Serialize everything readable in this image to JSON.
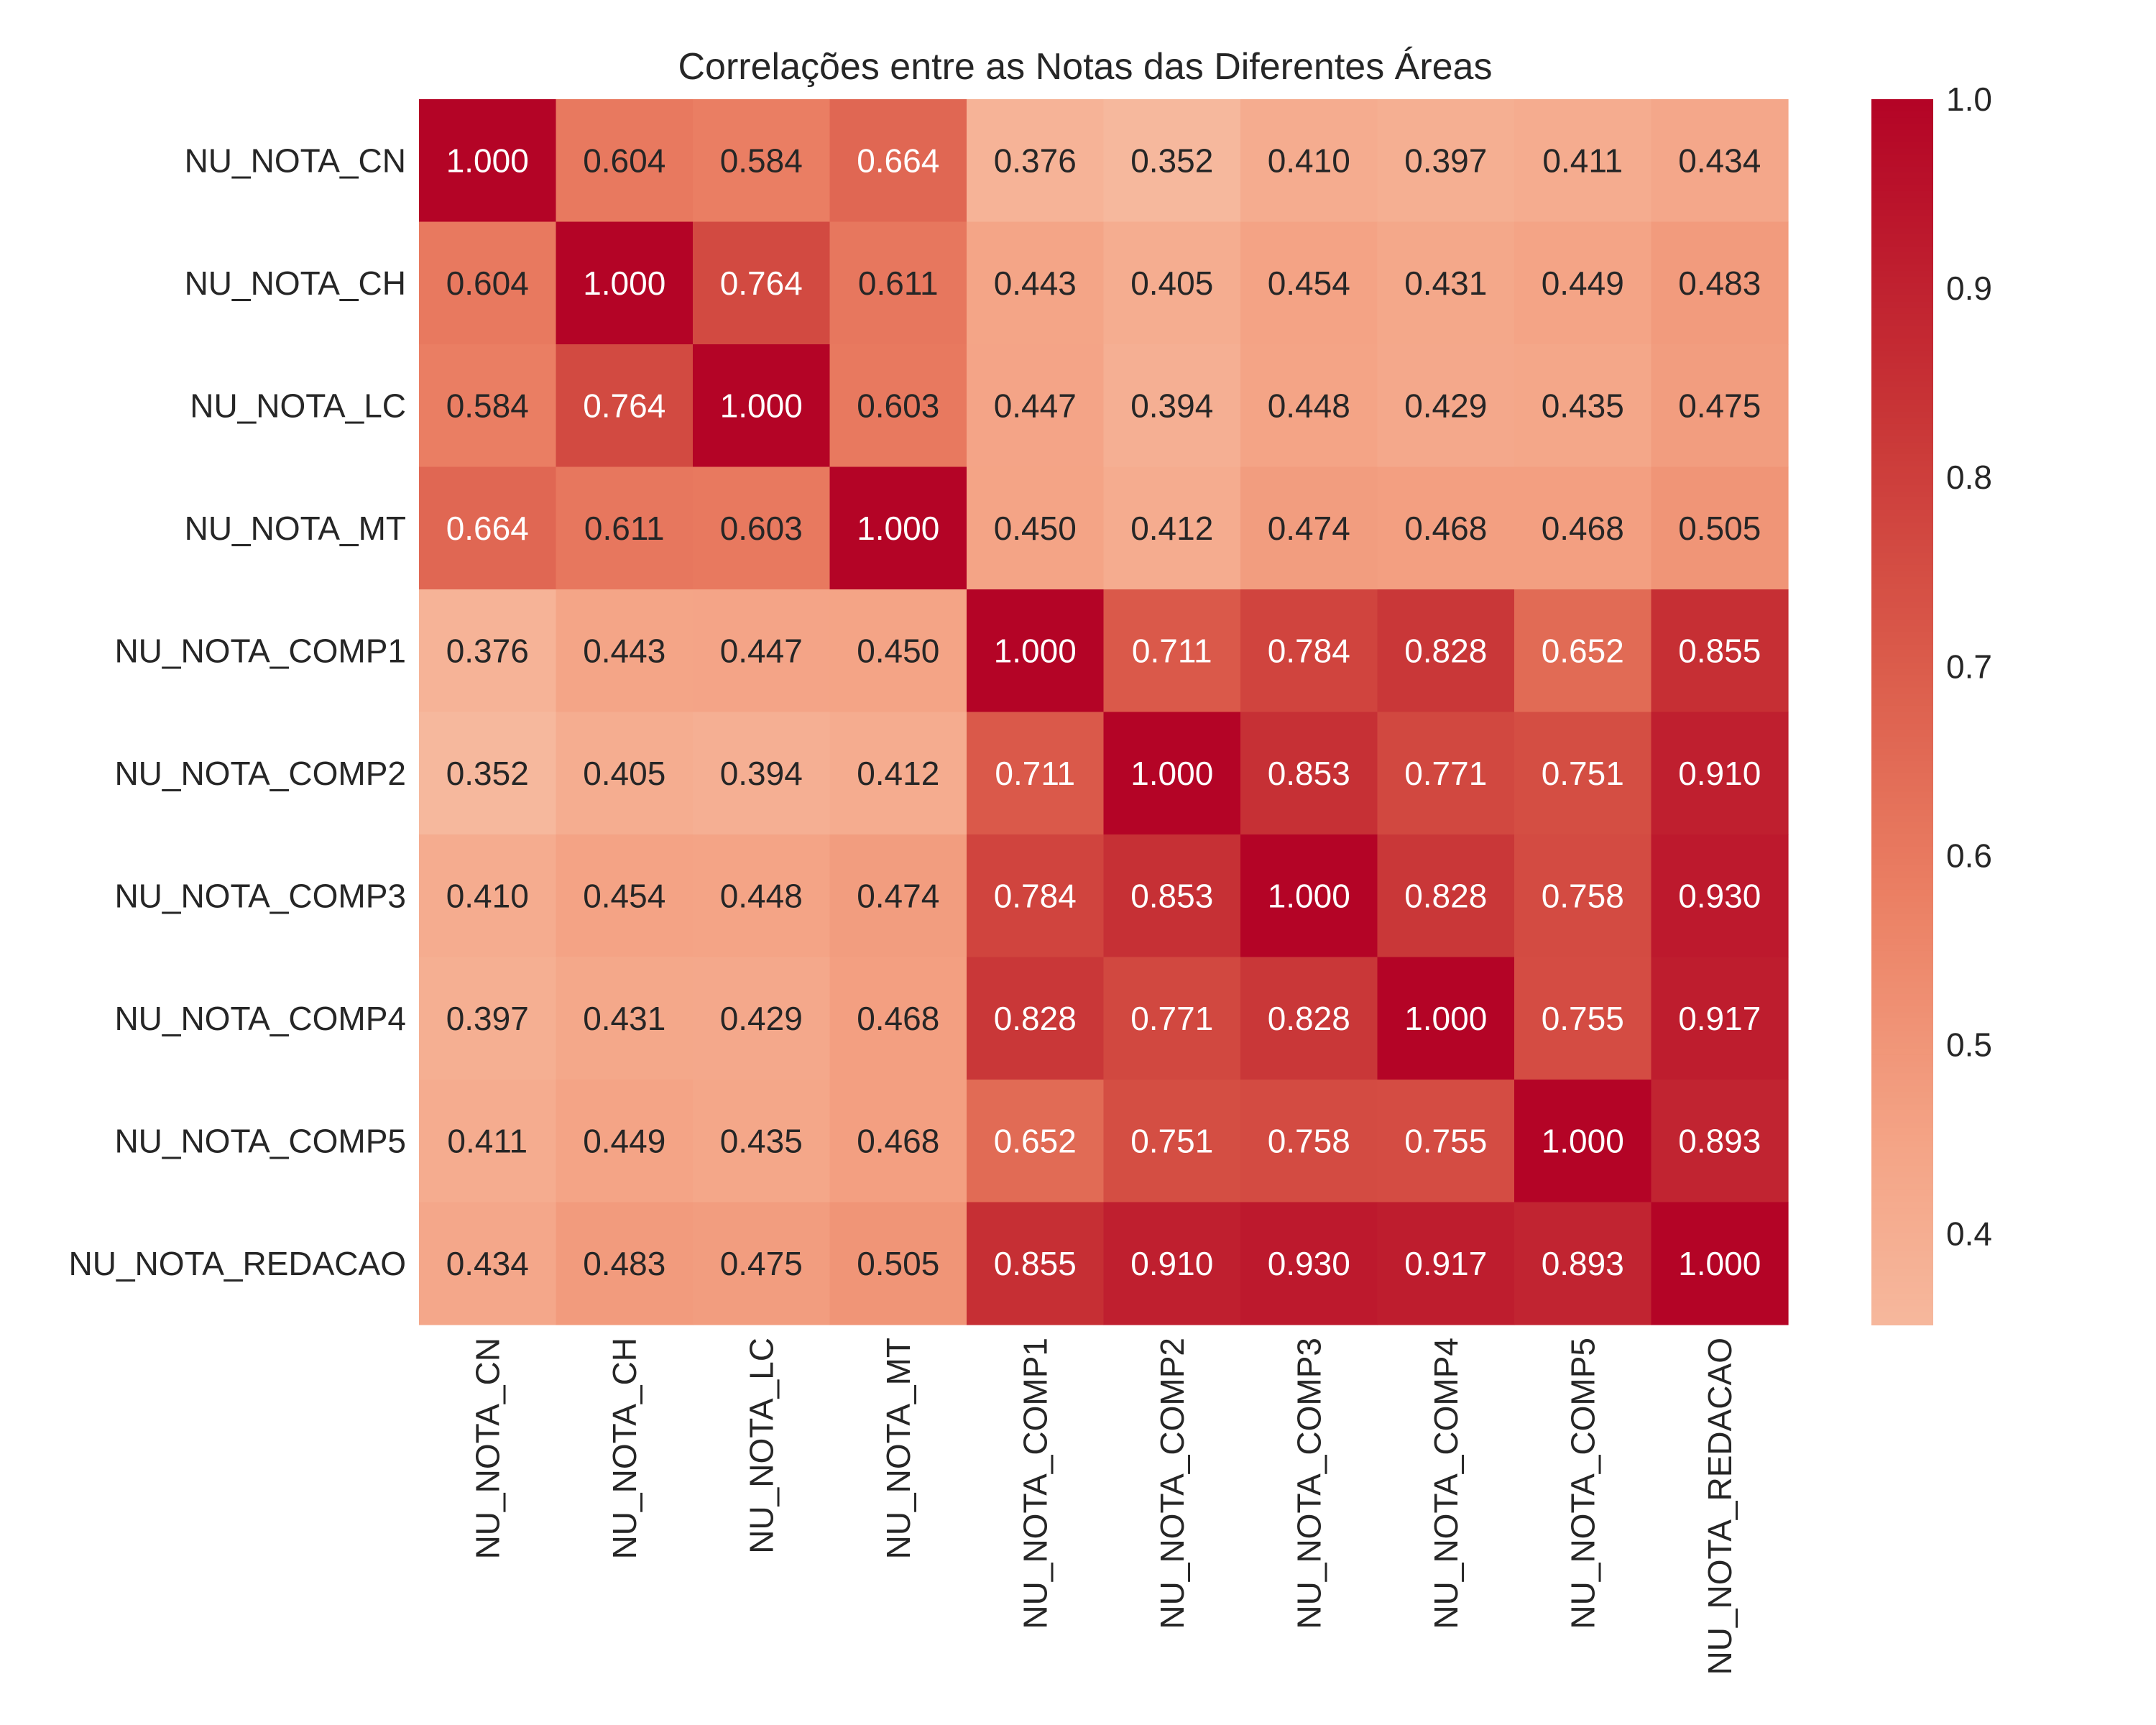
{
  "chart_data": {
    "type": "heatmap",
    "title": "Correlações entre as Notas das Diferentes Áreas",
    "xlabel": "",
    "ylabel": "",
    "labels": [
      "NU_NOTA_CN",
      "NU_NOTA_CH",
      "NU_NOTA_LC",
      "NU_NOTA_MT",
      "NU_NOTA_COMP1",
      "NU_NOTA_COMP2",
      "NU_NOTA_COMP3",
      "NU_NOTA_COMP4",
      "NU_NOTA_COMP5",
      "NU_NOTA_REDACAO"
    ],
    "matrix": [
      [
        1.0,
        0.604,
        0.584,
        0.664,
        0.376,
        0.352,
        0.41,
        0.397,
        0.411,
        0.434
      ],
      [
        0.604,
        1.0,
        0.764,
        0.611,
        0.443,
        0.405,
        0.454,
        0.431,
        0.449,
        0.483
      ],
      [
        0.584,
        0.764,
        1.0,
        0.603,
        0.447,
        0.394,
        0.448,
        0.429,
        0.435,
        0.475
      ],
      [
        0.664,
        0.611,
        0.603,
        1.0,
        0.45,
        0.412,
        0.474,
        0.468,
        0.468,
        0.505
      ],
      [
        0.376,
        0.443,
        0.447,
        0.45,
        1.0,
        0.711,
        0.784,
        0.828,
        0.652,
        0.855
      ],
      [
        0.352,
        0.405,
        0.394,
        0.412,
        0.711,
        1.0,
        0.853,
        0.771,
        0.751,
        0.91
      ],
      [
        0.41,
        0.454,
        0.448,
        0.474,
        0.784,
        0.853,
        1.0,
        0.828,
        0.758,
        0.93
      ],
      [
        0.397,
        0.431,
        0.429,
        0.468,
        0.828,
        0.771,
        0.828,
        1.0,
        0.755,
        0.917
      ],
      [
        0.411,
        0.449,
        0.435,
        0.468,
        0.652,
        0.751,
        0.758,
        0.755,
        1.0,
        0.893
      ],
      [
        0.434,
        0.483,
        0.475,
        0.505,
        0.855,
        0.91,
        0.93,
        0.917,
        0.893,
        1.0
      ]
    ],
    "value_format": "%.3f",
    "colorbar": {
      "min": 0.352,
      "max": 1.0,
      "ticks": [
        "0.4",
        "0.5",
        "0.6",
        "0.7",
        "0.8",
        "0.9",
        "1.0"
      ],
      "colormap": "coolwarm (upper half)",
      "color_low": "#f6b89d",
      "color_high": "#b40426"
    },
    "grid": false
  }
}
